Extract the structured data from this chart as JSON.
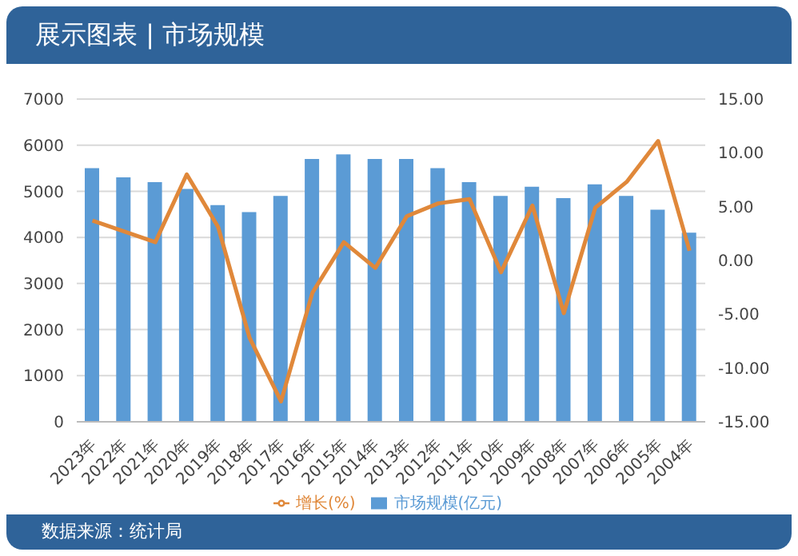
{
  "chart_data": {
    "type": "bar",
    "title": "展示图表 | 市场规模",
    "categories": [
      "2023年",
      "2022年",
      "2021年",
      "2020年",
      "2019年",
      "2018年",
      "2017年",
      "2016年",
      "2015年",
      "2014年",
      "2013年",
      "2012年",
      "2011年",
      "2010年",
      "2009年",
      "2008年",
      "2007年",
      "2006年",
      "2005年",
      "2004年"
    ],
    "series": [
      {
        "name": "市场规模(亿元)",
        "color": "#5b9bd5",
        "values": [
          5500,
          5300,
          5200,
          5050,
          4700,
          4550,
          4900,
          5700,
          5800,
          5700,
          5700,
          5500,
          5200,
          4900,
          5100,
          4850,
          5150,
          4900,
          4600,
          4100
        ]
      },
      {
        "name": "增长(%)",
        "type": "line",
        "axis": "y2",
        "color": "#e0883a",
        "values": [
          3.7,
          2.7,
          1.7,
          8.0,
          3.1,
          -7.2,
          -13.1,
          -3.0,
          1.7,
          -0.7,
          4.1,
          5.3,
          5.7,
          -1.1,
          5.1,
          -4.9,
          4.9,
          7.3,
          11.1,
          0.9
        ]
      }
    ],
    "ylim": [
      0,
      7000
    ],
    "yticks": [
      0,
      1000,
      2000,
      3000,
      4000,
      5000,
      6000,
      7000
    ],
    "y2lim": [
      -15,
      15
    ],
    "y2ticks": [
      {
        "value": -15,
        "label": "-15.00"
      },
      {
        "value": -10,
        "label": "-10.00"
      },
      {
        "value": -5,
        "label": "-5.00"
      },
      {
        "value": 0,
        "label": "0.00"
      },
      {
        "value": 5,
        "label": "5.00"
      },
      {
        "value": 10,
        "label": "10.00"
      },
      {
        "value": 15,
        "label": "15.00"
      }
    ],
    "grid": "y",
    "legend": "bottom",
    "marker": "none",
    "line_style": "solid",
    "annotations": [
      "数据来源：统计局"
    ]
  }
}
